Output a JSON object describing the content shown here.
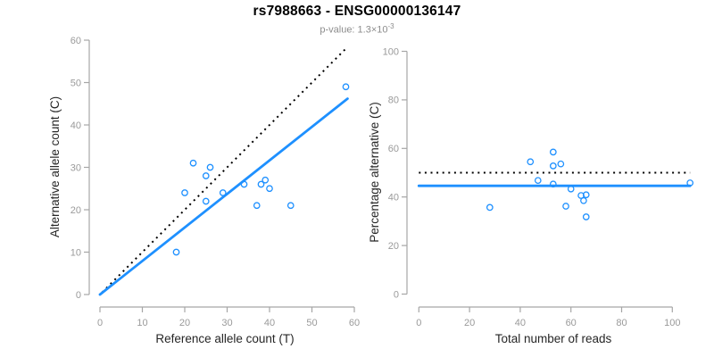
{
  "header": {
    "title": "rs7988663 - ENSG00000136147",
    "pvalue_text": "p-value: 1.3×10",
    "pvalue_exponent": "-3"
  },
  "colors": {
    "point_stroke": "#1E90FF",
    "fit_line": "#1E90FF",
    "identity_line": "#000000",
    "axis_line": "#a6a6a6",
    "tick_text": "#9a9a9a",
    "axis_title_text": "#262626",
    "title_text": "#000000",
    "subtitle_text": "#8c8c8c"
  },
  "chart_data": [
    {
      "type": "scatter",
      "panel": "left",
      "xlabel": "Reference allele count (T)",
      "ylabel": "Alternative allele count (C)",
      "xlim": [
        0,
        60
      ],
      "ylim": [
        0,
        60
      ],
      "x_ticks": [
        0,
        10,
        20,
        30,
        40,
        50,
        60
      ],
      "y_ticks": [
        0,
        10,
        20,
        30,
        40,
        50,
        60
      ],
      "grid": false,
      "legend": null,
      "points": [
        [
          18,
          10
        ],
        [
          20,
          24
        ],
        [
          22,
          31
        ],
        [
          25,
          22
        ],
        [
          25,
          28
        ],
        [
          26,
          30
        ],
        [
          29,
          24
        ],
        [
          34,
          26
        ],
        [
          37,
          21
        ],
        [
          38,
          26
        ],
        [
          39,
          27
        ],
        [
          40,
          25
        ],
        [
          45,
          21
        ],
        [
          58,
          49
        ]
      ],
      "lines": [
        {
          "name": "identity-line",
          "style": "dotted",
          "color": "#000000",
          "x1": 0.5,
          "y1": 0.5,
          "x2": 58.2,
          "y2": 58.2
        },
        {
          "name": "fit-line",
          "style": "solid",
          "color": "#1E90FF",
          "x1": 0,
          "y1": 0,
          "x2": 58.4,
          "y2": 46.2
        }
      ]
    },
    {
      "type": "scatter",
      "panel": "right",
      "xlabel": "Total number of reads",
      "ylabel": "Percentage alternative (C)",
      "xlim": [
        0,
        107
      ],
      "ylim": [
        0,
        100
      ],
      "x_ticks": [
        0,
        20,
        40,
        60,
        80,
        100
      ],
      "y_ticks": [
        0,
        20,
        40,
        60,
        80,
        100
      ],
      "grid": false,
      "legend": null,
      "points": [
        [
          28,
          35.7
        ],
        [
          44,
          54.5
        ],
        [
          47,
          46.8
        ],
        [
          53,
          45.3
        ],
        [
          53,
          52.8
        ],
        [
          53,
          58.5
        ],
        [
          56,
          53.6
        ],
        [
          58,
          36.2
        ],
        [
          60,
          43.3
        ],
        [
          64,
          40.6
        ],
        [
          65,
          38.5
        ],
        [
          66,
          31.8
        ],
        [
          66,
          40.9
        ],
        [
          107,
          45.8
        ]
      ],
      "lines": [
        {
          "name": "expected-50pct-line",
          "style": "dotted",
          "color": "#000000",
          "x1": 0,
          "y1": 50,
          "x2": 107,
          "y2": 50
        },
        {
          "name": "mean-percentage-line",
          "style": "solid",
          "color": "#1E90FF",
          "x1": 0,
          "y1": 44.6,
          "x2": 107,
          "y2": 44.6
        }
      ]
    }
  ]
}
